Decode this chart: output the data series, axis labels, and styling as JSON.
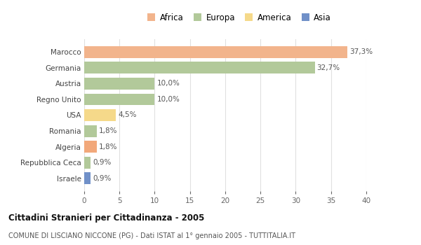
{
  "countries": [
    "Marocco",
    "Germania",
    "Austria",
    "Regno Unito",
    "USA",
    "Romania",
    "Algeria",
    "Repubblica Ceca",
    "Israele"
  ],
  "values": [
    37.3,
    32.7,
    10.0,
    10.0,
    4.5,
    1.8,
    1.8,
    0.9,
    0.9
  ],
  "labels": [
    "37,3%",
    "32,7%",
    "10,0%",
    "10,0%",
    "4,5%",
    "1,8%",
    "1,8%",
    "0,9%",
    "0,9%"
  ],
  "colors": [
    "#f2b48c",
    "#b2c99a",
    "#b2c99a",
    "#b2c99a",
    "#f5d98a",
    "#b2c99a",
    "#f2a87a",
    "#b2c99a",
    "#7090c8"
  ],
  "legend_labels": [
    "Africa",
    "Europa",
    "America",
    "Asia"
  ],
  "legend_colors": [
    "#f2b48c",
    "#b2c99a",
    "#f5d98a",
    "#7090c8"
  ],
  "xlim": [
    0,
    40
  ],
  "xticks": [
    0,
    5,
    10,
    15,
    20,
    25,
    30,
    35,
    40
  ],
  "title": "Cittadini Stranieri per Cittadinanza - 2005",
  "subtitle": "COMUNE DI LISCIANO NICCONE (PG) - Dati ISTAT al 1° gennaio 2005 - TUTTITALIA.IT",
  "bg_color": "#ffffff",
  "grid_color": "#e0e0e0"
}
